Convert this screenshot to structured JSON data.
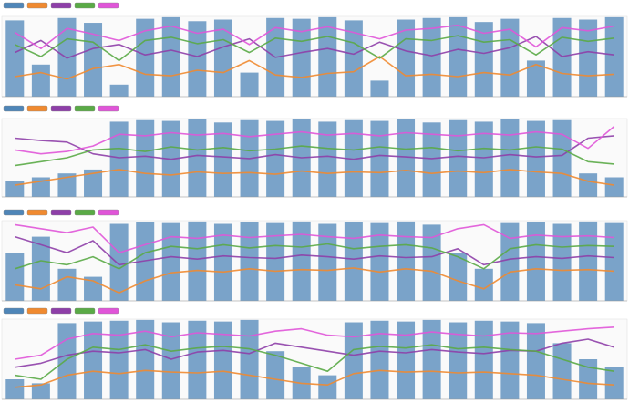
{
  "chart_data": [
    {
      "type": "line",
      "ylim": [
        0,
        100
      ],
      "series": [
        {
          "type": "bar",
          "color": "#4f86b8",
          "values": [
            95,
            40,
            98,
            92,
            15,
            97,
            99,
            94,
            96,
            30,
            98,
            97,
            99,
            95,
            20,
            96,
            98,
            99,
            93,
            97,
            45,
            98,
            96,
            99
          ]
        },
        {
          "color": "#f08a30",
          "values": [
            25,
            30,
            22,
            35,
            40,
            28,
            26,
            33,
            30,
            45,
            27,
            24,
            29,
            31,
            50,
            26,
            28,
            25,
            30,
            27,
            40,
            29,
            26,
            28
          ]
        },
        {
          "color": "#8e3fa8",
          "values": [
            55,
            70,
            48,
            60,
            65,
            52,
            58,
            50,
            62,
            72,
            49,
            55,
            60,
            53,
            68,
            57,
            51,
            59,
            54,
            61,
            75,
            50,
            56,
            52
          ]
        },
        {
          "color": "#5aaa46",
          "values": [
            65,
            50,
            72,
            68,
            45,
            70,
            74,
            66,
            71,
            55,
            73,
            69,
            75,
            67,
            48,
            72,
            70,
            76,
            68,
            71,
            52,
            74,
            69,
            73
          ]
        },
        {
          "color": "#e055d8",
          "values": [
            80,
            60,
            85,
            78,
            70,
            82,
            88,
            79,
            84,
            65,
            86,
            81,
            87,
            80,
            72,
            83,
            85,
            89,
            79,
            84,
            62,
            86,
            82,
            88
          ]
        }
      ]
    },
    {
      "type": "line",
      "ylim": [
        0,
        100
      ],
      "series": [
        {
          "type": "bar",
          "color": "#4f86b8",
          "values": [
            20,
            25,
            30,
            35,
            96,
            98,
            97,
            99,
            95,
            98,
            97,
            99,
            96,
            98,
            97,
            99,
            95,
            98,
            96,
            99,
            97,
            98,
            30,
            25
          ]
        },
        {
          "color": "#f08a30",
          "values": [
            15,
            20,
            25,
            30,
            35,
            30,
            28,
            32,
            30,
            31,
            29,
            33,
            30,
            32,
            31,
            34,
            30,
            33,
            31,
            35,
            32,
            30,
            20,
            15
          ]
        },
        {
          "color": "#8e3fa8",
          "values": [
            75,
            72,
            70,
            55,
            50,
            52,
            48,
            53,
            51,
            49,
            54,
            50,
            52,
            48,
            53,
            51,
            49,
            52,
            50,
            54,
            51,
            53,
            75,
            78
          ]
        },
        {
          "color": "#5aaa46",
          "values": [
            40,
            45,
            50,
            60,
            62,
            58,
            64,
            60,
            63,
            59,
            61,
            65,
            62,
            60,
            64,
            61,
            63,
            59,
            62,
            60,
            64,
            61,
            45,
            42
          ]
        },
        {
          "color": "#e055d8",
          "values": [
            60,
            55,
            58,
            65,
            80,
            78,
            82,
            79,
            81,
            77,
            80,
            83,
            79,
            81,
            78,
            82,
            80,
            78,
            81,
            79,
            83,
            80,
            62,
            90
          ]
        }
      ]
    },
    {
      "type": "line",
      "ylim": [
        0,
        100
      ],
      "series": [
        {
          "type": "bar",
          "color": "#4f86b8",
          "values": [
            60,
            80,
            40,
            30,
            96,
            98,
            97,
            99,
            96,
            98,
            97,
            99,
            96,
            98,
            97,
            99,
            95,
            60,
            40,
            97,
            98,
            96,
            99,
            97
          ]
        },
        {
          "color": "#f08a30",
          "values": [
            20,
            15,
            30,
            25,
            10,
            25,
            35,
            38,
            36,
            40,
            37,
            39,
            38,
            41,
            36,
            40,
            37,
            25,
            15,
            36,
            40,
            38,
            39,
            37
          ]
        },
        {
          "color": "#8e3fa8",
          "values": [
            80,
            70,
            60,
            75,
            45,
            50,
            55,
            52,
            56,
            54,
            53,
            57,
            55,
            52,
            56,
            54,
            55,
            65,
            45,
            52,
            55,
            53,
            56,
            54
          ]
        },
        {
          "color": "#5aaa46",
          "values": [
            40,
            50,
            45,
            55,
            40,
            60,
            68,
            65,
            70,
            66,
            69,
            67,
            71,
            65,
            68,
            70,
            66,
            55,
            40,
            65,
            70,
            67,
            69,
            68
          ]
        },
        {
          "color": "#e055d8",
          "values": [
            95,
            90,
            85,
            92,
            60,
            70,
            80,
            78,
            82,
            79,
            81,
            83,
            80,
            78,
            82,
            80,
            79,
            90,
            95,
            78,
            82,
            80,
            81,
            79
          ]
        }
      ]
    },
    {
      "type": "line",
      "ylim": [
        0,
        100
      ],
      "series": [
        {
          "type": "bar",
          "color": "#4f86b8",
          "values": [
            25,
            20,
            95,
            97,
            98,
            99,
            96,
            98,
            97,
            99,
            60,
            40,
            30,
            96,
            98,
            97,
            99,
            96,
            98,
            97,
            95,
            70,
            50,
            40
          ]
        },
        {
          "color": "#f08a30",
          "values": [
            15,
            18,
            30,
            35,
            32,
            36,
            34,
            33,
            35,
            30,
            25,
            20,
            18,
            32,
            36,
            34,
            35,
            33,
            34,
            32,
            30,
            25,
            20,
            18
          ]
        },
        {
          "color": "#8e3fa8",
          "values": [
            40,
            45,
            55,
            60,
            58,
            62,
            50,
            59,
            61,
            57,
            70,
            65,
            60,
            55,
            60,
            58,
            62,
            59,
            57,
            61,
            60,
            70,
            75,
            65
          ]
        },
        {
          "color": "#5aaa46",
          "values": [
            30,
            25,
            50,
            65,
            62,
            68,
            60,
            64,
            66,
            63,
            55,
            45,
            35,
            62,
            66,
            64,
            68,
            63,
            65,
            62,
            60,
            50,
            40,
            35
          ]
        },
        {
          "color": "#e055d8",
          "values": [
            50,
            55,
            75,
            82,
            80,
            85,
            78,
            83,
            81,
            79,
            85,
            88,
            80,
            78,
            82,
            80,
            84,
            81,
            79,
            83,
            82,
            85,
            88,
            90
          ]
        }
      ]
    }
  ]
}
